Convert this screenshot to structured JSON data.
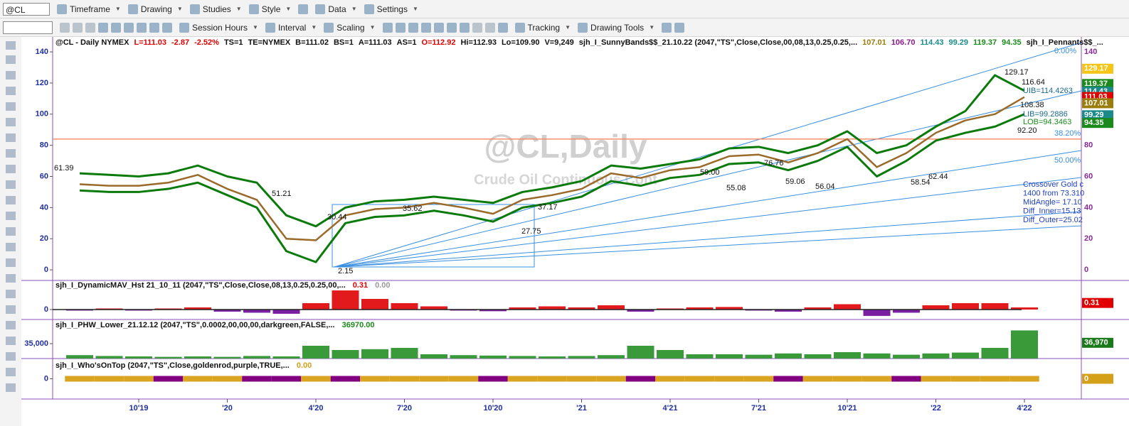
{
  "toolbar": {
    "symbol": "@CL",
    "menus": [
      "Timeframe",
      "Drawing",
      "Studies",
      "Style",
      "Data",
      "Settings"
    ],
    "tools": [
      "Session Hours",
      "Interval",
      "Scaling",
      "Tracking",
      "Drawing Tools"
    ]
  },
  "chart_data": [
    {
      "type": "line",
      "header": [
        {
          "text": "@CL - Daily  NYMEX",
          "color": "#111"
        },
        {
          "text": "L=111.03",
          "color": "#e00000"
        },
        {
          "text": "-2.87",
          "color": "#e00000"
        },
        {
          "text": "-2.52%",
          "color": "#e00000"
        },
        {
          "text": "TS=1",
          "color": "#111"
        },
        {
          "text": "TE=NYMEX",
          "color": "#111"
        },
        {
          "text": "B=111.02",
          "color": "#111"
        },
        {
          "text": "BS=1",
          "color": "#111"
        },
        {
          "text": "A=111.03",
          "color": "#111"
        },
        {
          "text": "AS=1",
          "color": "#111"
        },
        {
          "text": "O=112.92",
          "color": "#e00000"
        },
        {
          "text": "Hi=112.93",
          "color": "#111"
        },
        {
          "text": "Lo=109.90",
          "color": "#111"
        },
        {
          "text": "V=9,249",
          "color": "#111"
        },
        {
          "text": "sjh_I_SunnyBands$$_21.10.22 (2047,\"TS\",Close,Close,00,08,13,0.25,0.25,...",
          "color": "#111"
        },
        {
          "text": "107.01",
          "color": "#9a7d0a"
        },
        {
          "text": "106.70",
          "color": "#8b1a8b"
        },
        {
          "text": "114.43",
          "color": "#1a8a8a"
        },
        {
          "text": "99.29",
          "color": "#1a8a8a"
        },
        {
          "text": "119.37",
          "color": "#1a8a1a"
        },
        {
          "text": "94.35",
          "color": "#1a8a1a"
        },
        {
          "text": "sjh_I_Pennants$$_...",
          "color": "#111"
        }
      ],
      "watermark": "@CL,Daily",
      "subtitle": "Crude Oil Continuous Cont",
      "categories": [
        null,
        null,
        "10'19",
        null,
        null,
        "'20",
        null,
        null,
        "4'20",
        null,
        null,
        "7'20",
        null,
        null,
        "10'20",
        null,
        null,
        "'21",
        null,
        null,
        "4'21",
        null,
        null,
        "7'21",
        null,
        null,
        "10'21",
        null,
        null,
        "'22",
        null,
        null,
        "4'22"
      ],
      "series": [
        {
          "color": "#0a7a0a",
          "values": [
            62,
            61,
            60,
            62,
            67,
            60,
            56,
            35,
            28,
            40,
            44,
            45,
            47,
            45,
            43,
            50,
            53,
            57,
            67,
            65,
            68,
            71,
            78,
            79,
            75,
            80,
            89,
            75,
            80,
            92,
            102,
            125,
            115
          ]
        },
        {
          "color": "#0a7a0a",
          "values": [
            51,
            50,
            50,
            52,
            56,
            48,
            40,
            12,
            5,
            30,
            34,
            35,
            38,
            35,
            31,
            40,
            43,
            47,
            57,
            54,
            59,
            61,
            68,
            69,
            64,
            70,
            79,
            60,
            70,
            83,
            88,
            92,
            100
          ]
        },
        {
          "color": "#9a6a2a",
          "values": [
            55,
            54,
            54,
            56,
            61,
            52,
            45,
            20,
            19,
            35,
            39,
            40,
            43,
            40,
            36,
            45,
            48,
            52,
            62,
            59,
            64,
            66,
            73,
            74,
            69,
            75,
            84,
            66,
            75,
            88,
            96,
            100,
            111
          ]
        }
      ],
      "ylim": [
        -6.8,
        149.6
      ],
      "yticks": [
        0,
        20,
        40,
        60,
        80,
        100,
        120,
        140
      ],
      "axis_color": "#1f2f9f",
      "reference_line": {
        "value": 84,
        "color": "#ff7a50"
      },
      "price_markers": [
        {
          "value": 129.17,
          "color": "#f5c518"
        },
        {
          "value": 119.37,
          "color": "#1a8a1a"
        },
        {
          "value": 114.43,
          "color": "#1a8a8a"
        },
        {
          "value": 111.03,
          "color": "#e00000"
        },
        {
          "value": 107.01,
          "color": "#9a7d0a"
        },
        {
          "value": 99.29,
          "color": "#1a8a8a"
        },
        {
          "value": 94.35,
          "color": "#1a8a1a"
        }
      ],
      "labels": [
        "129.17",
        "116.64",
        "108.38",
        "92.20",
        "UIB=114.4263",
        "LIB=99.2886",
        "LOB=94.3463",
        "2.15",
        "27.75",
        "37.17",
        "59.06",
        "56.04",
        "58.54",
        "62.44",
        "55.08",
        "51.21",
        "30.44",
        "35.62",
        "61.39",
        "59.00",
        "76.76"
      ],
      "fib_labels": [
        "0.00%",
        "38.20%",
        "50.00%"
      ],
      "notes": [
        "Crossover Gold c",
        "1400 from 73.310",
        "MidAngle= 17.10",
        "Diff_Inner=15.13",
        "Diff_Outer=25.02"
      ]
    },
    {
      "type": "histogram",
      "title": "sjh_I_DynamicMAV_Hst 21_10_11 (2047,\"TS\",Close,Close,08,13,0.25,0.25,00,...",
      "readouts": [
        {
          "text": "0.31",
          "color": "#e00000"
        },
        {
          "text": "0.00",
          "color": "#999"
        }
      ],
      "values": [
        -0.05,
        0.05,
        -0.05,
        0.05,
        0.1,
        -0.1,
        -0.15,
        -0.2,
        0.3,
        0.9,
        0.5,
        0.3,
        0.15,
        -0.05,
        -0.08,
        0.1,
        0.15,
        0.1,
        0.2,
        -0.1,
        0.05,
        0.1,
        0.12,
        -0.05,
        -0.1,
        0.1,
        0.25,
        -0.3,
        -0.15,
        0.2,
        0.3,
        0.3,
        0.1
      ],
      "colors": {
        "up": "#e31a1c",
        "down": "#7b1fa2"
      },
      "ylim": [
        -0.47,
        1.37
      ],
      "yticks": [
        0
      ],
      "price_markers": [
        {
          "value": 0.31,
          "color": "#e00000"
        }
      ]
    },
    {
      "type": "volume",
      "title": "sjh_I_PHW_Lower_21.12.12 (2047,\"TS\",0.0002,00,00,00,darkgreen,FALSE,...",
      "readouts": [
        {
          "text": "36970.00",
          "color": "#1a8a1a"
        }
      ],
      "values": [
        8000,
        6000,
        5000,
        4000,
        5000,
        4000,
        6000,
        5000,
        30000,
        20000,
        22000,
        25000,
        10000,
        8000,
        7000,
        6000,
        5000,
        6000,
        8000,
        30000,
        20000,
        10000,
        10000,
        9000,
        12000,
        10000,
        15000,
        12000,
        9000,
        12000,
        14000,
        25000,
        66000
      ],
      "color": "#3a9a3a",
      "ylim": [
        0,
        91667
      ],
      "yticks": [
        {
          "value": 35000,
          "label": "35,000"
        }
      ],
      "price_markers": [
        {
          "value": 36970,
          "label": "36,970",
          "color": "#1a7a1a"
        }
      ]
    },
    {
      "type": "ribbon",
      "title": "sjh_I_Who'sOnTop (2047,\"TS\",Close,goldenrod,purple,TRUE,...",
      "readouts": [
        {
          "text": "0.00",
          "color": "#d4a017"
        }
      ],
      "segments": [
        "goldenrod",
        "goldenrod",
        "goldenrod",
        "purple",
        "goldenrod",
        "goldenrod",
        "purple",
        "purple",
        "goldenrod",
        "purple",
        "goldenrod",
        "goldenrod",
        "goldenrod",
        "goldenrod",
        "purple",
        "goldenrod",
        "goldenrod",
        "goldenrod",
        "goldenrod",
        "purple",
        "goldenrod",
        "goldenrod",
        "goldenrod",
        "goldenrod",
        "purple",
        "goldenrod",
        "goldenrod",
        "goldenrod",
        "purple",
        "goldenrod",
        "goldenrod",
        "goldenrod",
        "goldenrod"
      ],
      "ylim": [
        -1,
        1
      ],
      "yticks": [
        0
      ],
      "price_markers": [
        {
          "value": 0,
          "color": "#d4a017"
        }
      ]
    }
  ]
}
